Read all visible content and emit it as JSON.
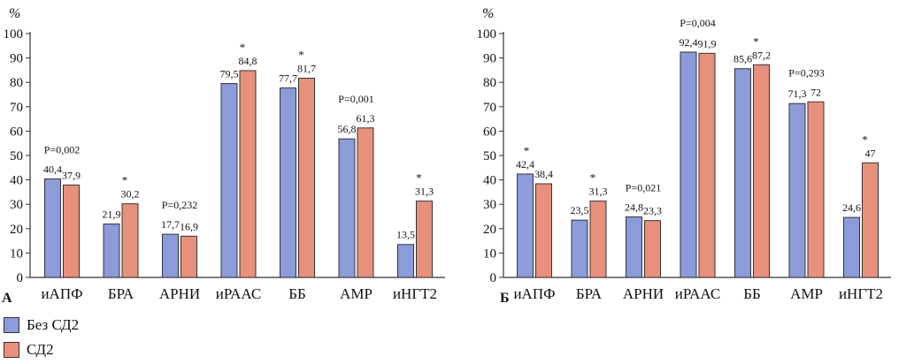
{
  "colors": {
    "series1": "#8c9bd9",
    "series2": "#e7917c",
    "stroke": "#333333"
  },
  "legend": {
    "items": [
      "Без СД2",
      "СД2"
    ]
  },
  "chart_data": [
    {
      "type": "bar",
      "panel_label": "А",
      "ylabel": "%",
      "ylim": [
        0,
        100
      ],
      "yticks": [
        0,
        10,
        20,
        30,
        40,
        50,
        60,
        70,
        80,
        90,
        100
      ],
      "categories": [
        "иАПФ",
        "БРА",
        "АРНИ",
        "иРААС",
        "ББ",
        "АМР",
        "иНГТ2"
      ],
      "series": [
        {
          "name": "Без СД2",
          "values": [
            40.4,
            21.9,
            17.7,
            79.5,
            77.7,
            56.8,
            13.5
          ],
          "labels": [
            "40,4",
            "21,9",
            "17,7",
            "79,5",
            "77,7",
            "56,8",
            "13,5"
          ]
        },
        {
          "name": "СД2",
          "values": [
            37.9,
            30.2,
            16.9,
            84.8,
            81.7,
            61.3,
            31.3
          ],
          "labels": [
            "37,9",
            "30,2",
            "16,9",
            "84,8",
            "81,7",
            "61,3",
            "31,3"
          ]
        }
      ],
      "annotations": [
        "P=0,002",
        "*",
        "P=0,232",
        "*",
        "*",
        "P=0,001",
        "*"
      ]
    },
    {
      "type": "bar",
      "panel_label": "Б",
      "ylabel": "%",
      "ylim": [
        0,
        100
      ],
      "yticks": [
        0,
        10,
        20,
        30,
        40,
        50,
        60,
        70,
        80,
        90,
        100
      ],
      "categories": [
        "иАПФ",
        "БРА",
        "АРНИ",
        "иРААС",
        "ББ",
        "АМР",
        "иНГТ2"
      ],
      "series": [
        {
          "name": "Без СД2",
          "values": [
            42.4,
            23.5,
            24.8,
            92.4,
            85.6,
            71.3,
            24.6
          ],
          "labels": [
            "42,4",
            "23,5",
            "24,8",
            "92,4",
            "85,6",
            "71,3",
            "24,6"
          ]
        },
        {
          "name": "СД2",
          "values": [
            38.4,
            31.3,
            23.3,
            91.9,
            87.2,
            72,
            47
          ],
          "labels": [
            "38,4",
            "31,3",
            "23,3",
            "91,9",
            "87,2",
            "72",
            "47"
          ]
        }
      ],
      "annotations": [
        "*",
        "*",
        "P=0,021",
        "P=0,004",
        "*",
        "P=0,293",
        "*"
      ]
    }
  ]
}
